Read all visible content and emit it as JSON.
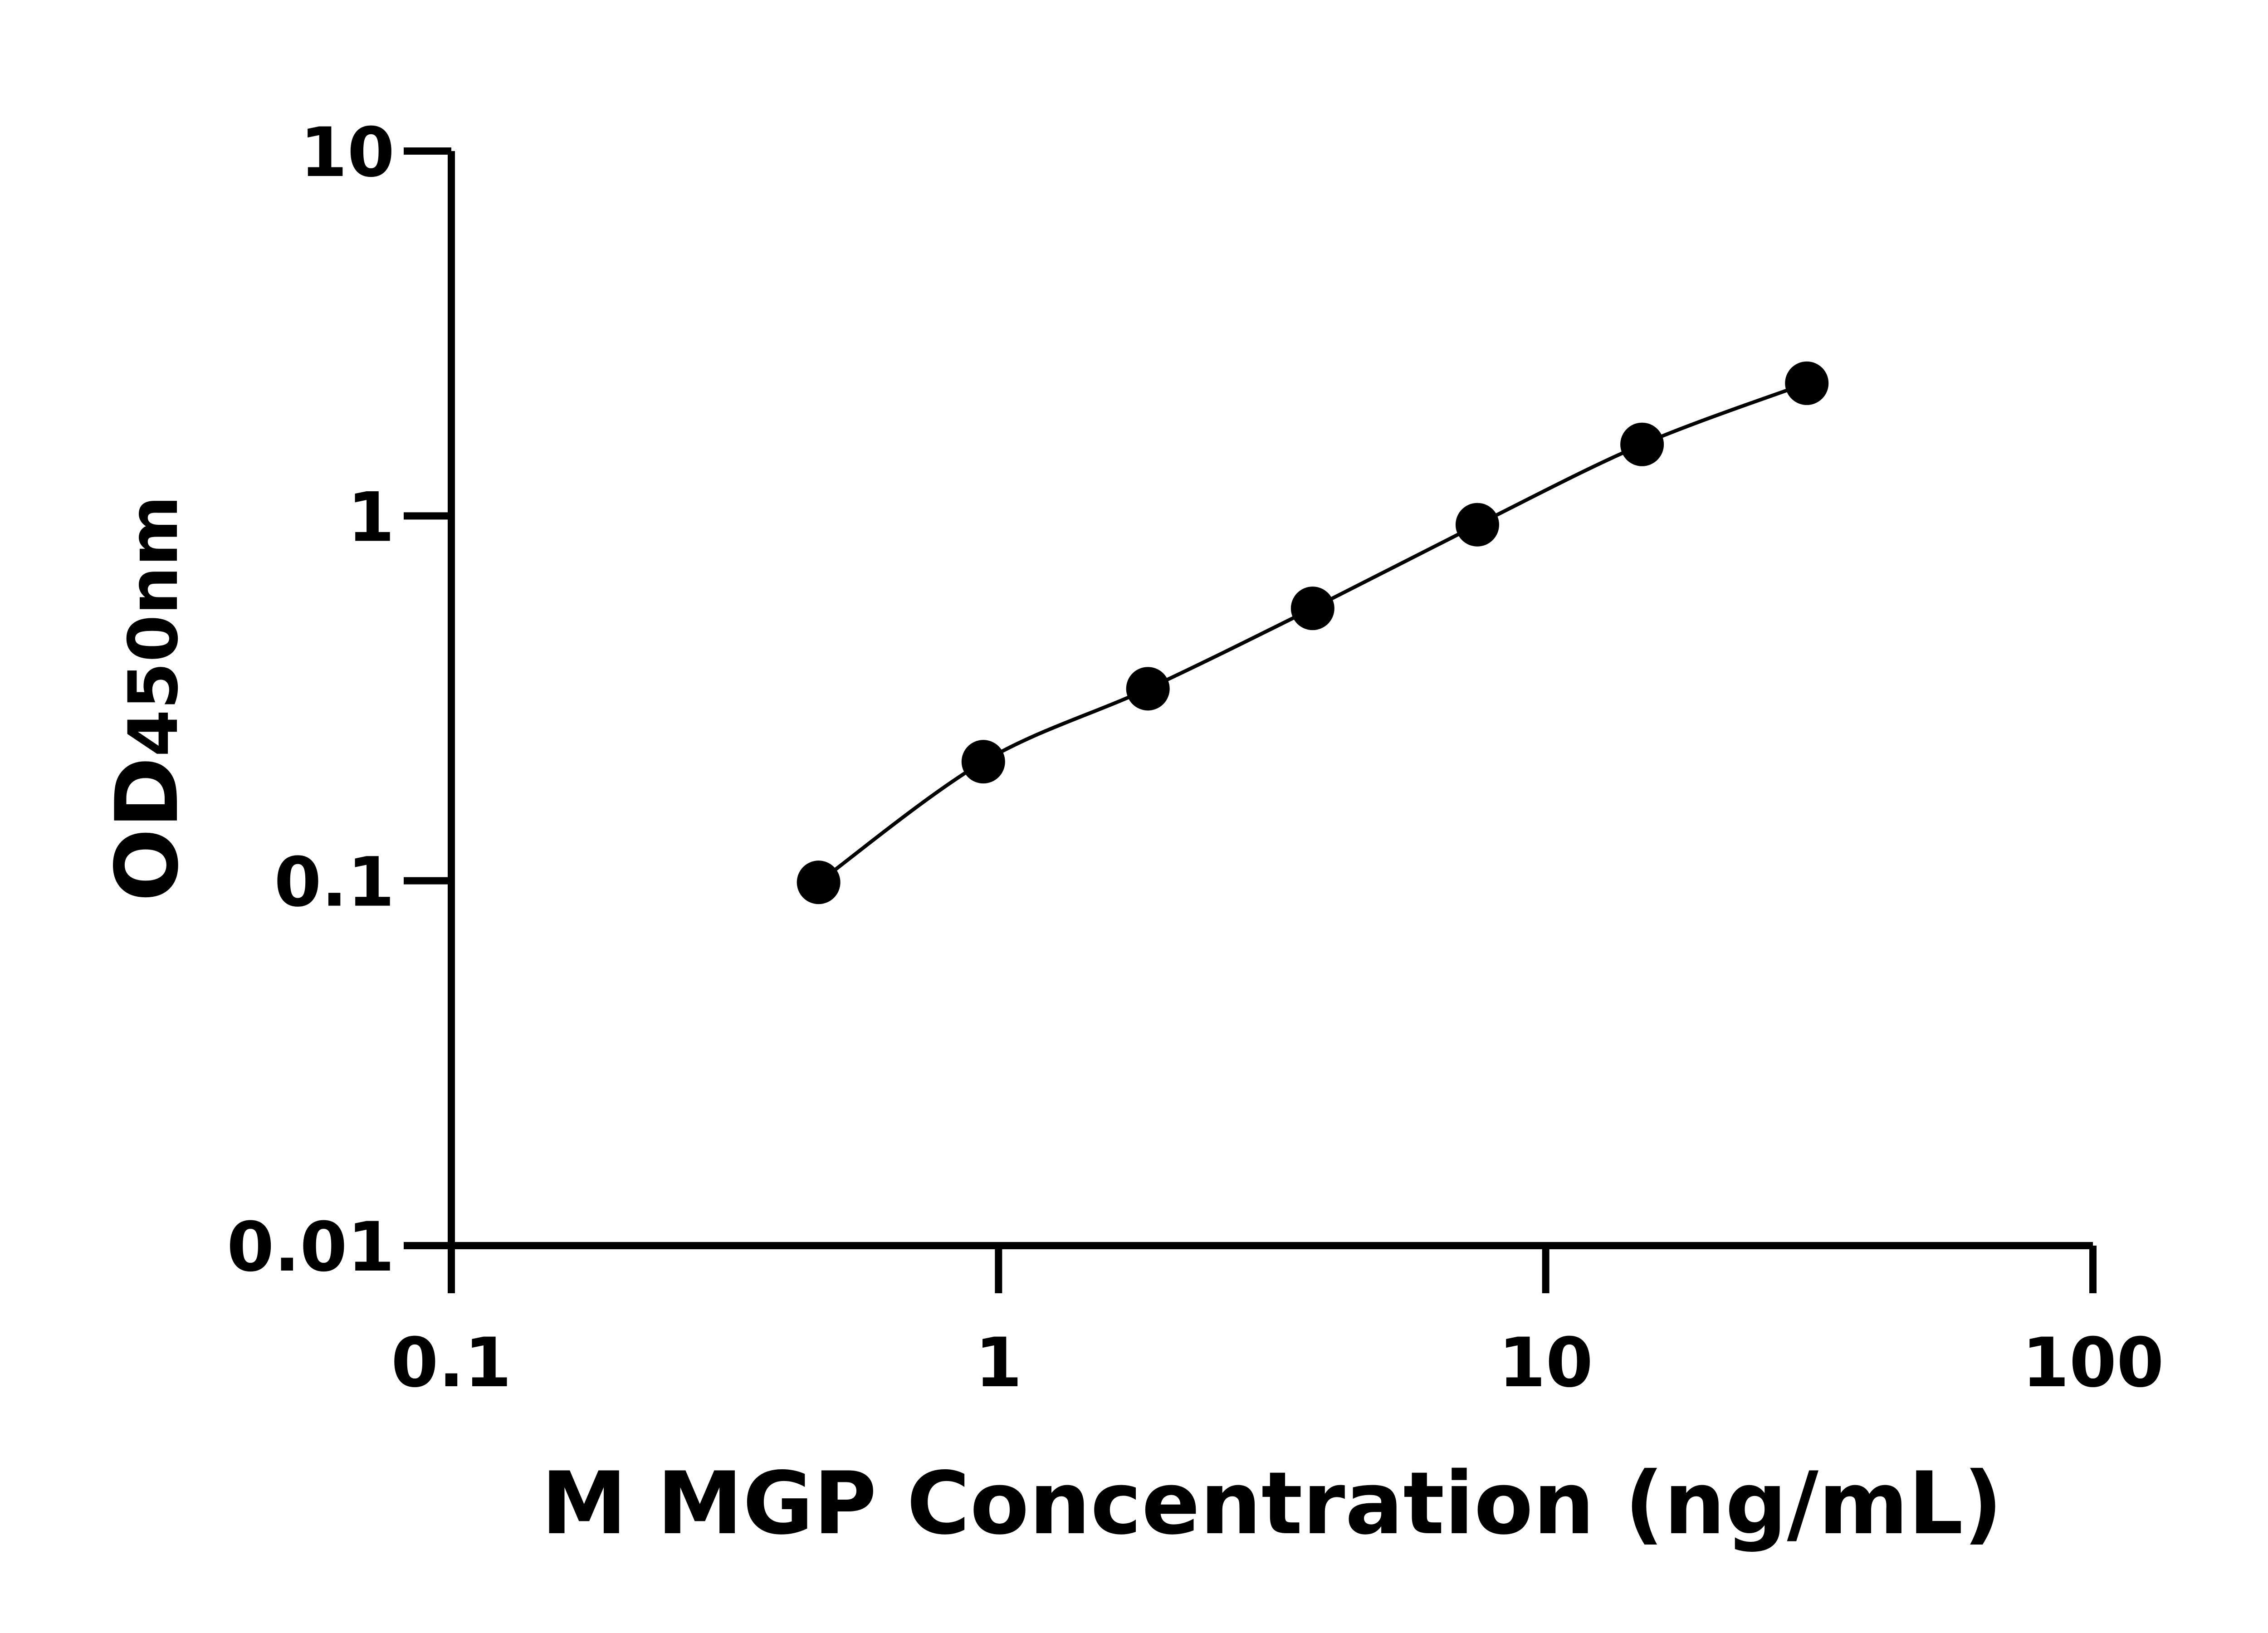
{
  "chart_data": {
    "type": "scatter",
    "title": "",
    "xlabel": "M MGP Concentration (ng/mL)",
    "ylabel_main": "OD",
    "ylabel_sub": "450nm",
    "x_scale": "log",
    "y_scale": "log",
    "xlim": [
      0.1,
      100
    ],
    "ylim": [
      0.01,
      10
    ],
    "x_ticks": [
      0.1,
      1,
      10,
      100
    ],
    "x_tick_labels": [
      "0.1",
      "1",
      "10",
      "100"
    ],
    "y_ticks": [
      0.01,
      0.1,
      1,
      10
    ],
    "y_tick_labels": [
      "0.01",
      "0.1",
      "1",
      "10"
    ],
    "grid": false,
    "marker_color": "#000000",
    "line_color": "#000000",
    "fit_line": true,
    "x": [
      0.469,
      0.938,
      1.875,
      3.75,
      7.5,
      15,
      30
    ],
    "y": [
      0.099,
      0.212,
      0.336,
      0.558,
      0.946,
      1.57,
      2.31
    ]
  }
}
